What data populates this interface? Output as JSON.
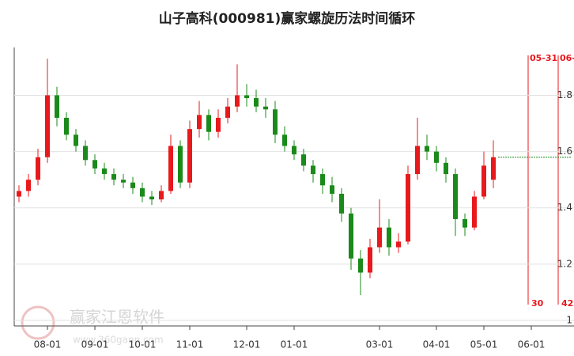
{
  "chart_data": {
    "type": "candlestick",
    "title": "山子高科(000981)赢家螺旋历法时间循环",
    "categories": [
      null,
      null,
      null,
      "08-01",
      null,
      null,
      null,
      null,
      "09-01",
      null,
      null,
      null,
      null,
      "10-01",
      null,
      null,
      null,
      null,
      "11-01",
      null,
      null,
      null,
      null,
      null,
      "12-01",
      null,
      null,
      null,
      null,
      "01-01",
      null,
      null,
      null,
      null,
      null,
      null,
      null,
      null,
      "03-01",
      null,
      null,
      null,
      null,
      null,
      "04-01",
      null,
      null,
      null,
      null,
      "05-01",
      null,
      null,
      null,
      null,
      "06-01",
      null,
      null,
      null,
      null
    ],
    "open": [
      1.44,
      1.46,
      1.5,
      1.58,
      1.8,
      1.72,
      1.66,
      1.62,
      1.57,
      1.54,
      1.52,
      1.5,
      1.49,
      1.47,
      1.44,
      1.43,
      1.46,
      1.62,
      1.49,
      1.68,
      1.73,
      1.67,
      1.72,
      1.76,
      1.8,
      1.79,
      1.76,
      1.75,
      1.66,
      1.62,
      1.59,
      1.55,
      1.52,
      1.48,
      1.45,
      1.38,
      1.22,
      1.17,
      1.26,
      1.33,
      1.26,
      1.28,
      1.52,
      1.62,
      1.6,
      1.56,
      1.52,
      1.36,
      1.33,
      1.44,
      1.5,
      null,
      null,
      null,
      null,
      null,
      null,
      null,
      null
    ],
    "high": [
      1.48,
      1.52,
      1.61,
      1.93,
      1.83,
      1.74,
      1.68,
      1.64,
      1.59,
      1.56,
      1.54,
      1.52,
      1.51,
      1.49,
      1.46,
      1.48,
      1.66,
      1.64,
      1.71,
      1.78,
      1.75,
      1.75,
      1.79,
      1.91,
      1.84,
      1.82,
      1.79,
      1.78,
      1.69,
      1.64,
      1.61,
      1.57,
      1.54,
      1.51,
      1.47,
      1.4,
      1.25,
      1.29,
      1.43,
      1.36,
      1.31,
      1.55,
      1.72,
      1.66,
      1.62,
      1.58,
      1.54,
      1.38,
      1.46,
      1.6,
      1.64,
      null,
      null,
      null,
      null,
      null,
      null,
      null,
      null
    ],
    "low": [
      1.42,
      1.44,
      1.48,
      1.56,
      1.69,
      1.64,
      1.6,
      1.55,
      1.52,
      1.5,
      1.48,
      1.47,
      1.45,
      1.42,
      1.41,
      1.42,
      1.45,
      1.47,
      1.47,
      1.65,
      1.64,
      1.65,
      1.7,
      1.74,
      1.76,
      1.74,
      1.72,
      1.63,
      1.6,
      1.57,
      1.53,
      1.49,
      1.45,
      1.42,
      1.35,
      1.18,
      1.09,
      1.15,
      1.24,
      1.23,
      1.24,
      1.27,
      1.5,
      1.57,
      1.53,
      1.49,
      1.3,
      1.3,
      1.32,
      1.43,
      1.47,
      null,
      null,
      null,
      null,
      null,
      null,
      null,
      null
    ],
    "close": [
      1.46,
      1.5,
      1.58,
      1.8,
      1.72,
      1.66,
      1.62,
      1.57,
      1.54,
      1.52,
      1.5,
      1.49,
      1.47,
      1.44,
      1.43,
      1.46,
      1.62,
      1.49,
      1.68,
      1.73,
      1.67,
      1.72,
      1.76,
      1.8,
      1.79,
      1.76,
      1.75,
      1.66,
      1.62,
      1.59,
      1.55,
      1.52,
      1.48,
      1.45,
      1.38,
      1.22,
      1.17,
      1.26,
      1.33,
      1.26,
      1.28,
      1.52,
      1.62,
      1.6,
      1.56,
      1.52,
      1.36,
      1.33,
      1.44,
      1.55,
      1.58,
      null,
      null,
      null,
      null,
      null,
      null,
      null,
      null
    ],
    "up_color": "#e8191c",
    "down_color": "#1a8a1a",
    "ylim": [
      1,
      1.97
    ],
    "yticks": [
      1,
      1.2,
      1.4,
      1.6,
      1.8
    ],
    "grid": true,
    "cycle_lines": [
      {
        "label": "05-31",
        "count": 30
      },
      {
        "label": "06-",
        "count": 42
      }
    ],
    "watermark": {
      "name": "赢家江恩软件",
      "url": "www.360gann.com"
    }
  }
}
